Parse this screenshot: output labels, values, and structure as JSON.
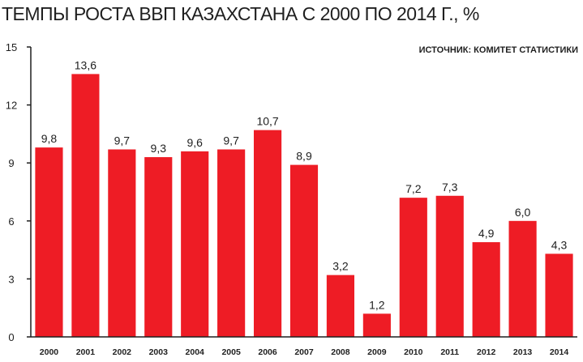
{
  "header": {
    "title": "ТЕМПЫ РОСТА ВВП КАЗАХСТАНА С 2000 ПО 2014 Г., %",
    "source": "ИСТОЧНИК: КОМИТЕТ СТАТИСТИКИ"
  },
  "colors": {
    "bar": "#ee1c25",
    "axis": "#1f1f1f",
    "gridline": "#cfcfcf"
  },
  "chart_data": {
    "type": "bar",
    "title": "ТЕМПЫ РОСТА ВВП КАЗАХСТАНА С 2000 ПО 2014 Г., %",
    "categories": [
      "2000",
      "2001",
      "2002",
      "2003",
      "2004",
      "2005",
      "2006",
      "2007",
      "2008",
      "2009",
      "2010",
      "2011",
      "2012",
      "2013",
      "2014"
    ],
    "values": [
      9.8,
      13.6,
      9.7,
      9.3,
      9.6,
      9.7,
      10.7,
      8.9,
      3.2,
      1.2,
      7.2,
      7.3,
      4.9,
      6.0,
      4.3
    ],
    "value_labels": [
      "9,8",
      "13,6",
      "9,7",
      "9,3",
      "9,6",
      "9,7",
      "10,7",
      "8,9",
      "3,2",
      "1,2",
      "7,2",
      "7,3",
      "4,9",
      "6,0",
      "4,3"
    ],
    "ylim": [
      0,
      15
    ],
    "yticks": [
      0,
      3,
      6,
      9,
      12,
      15
    ],
    "grid": false,
    "xlabel": "",
    "ylabel": ""
  }
}
